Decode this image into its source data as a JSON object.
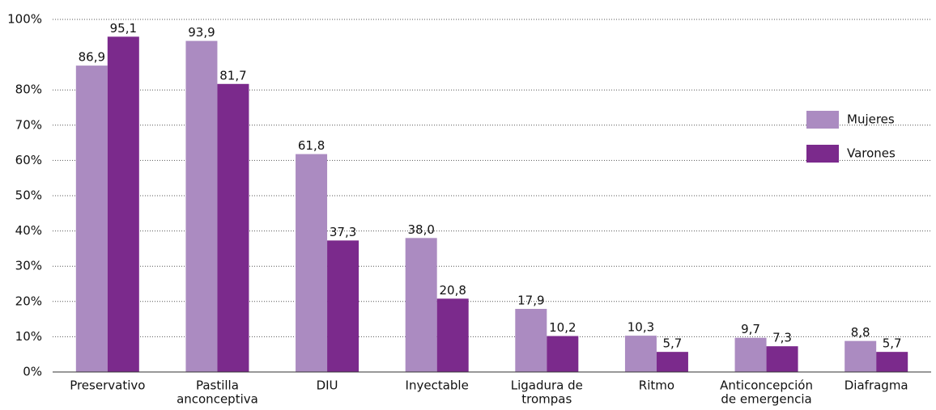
{
  "chart_data": {
    "type": "bar",
    "categories": [
      [
        "Preservativo"
      ],
      [
        "Pastilla",
        "anconceptiva"
      ],
      [
        "DIU"
      ],
      [
        "Inyectable"
      ],
      [
        "Ligadura de",
        "trompas"
      ],
      [
        "Ritmo"
      ],
      [
        "Anticoncepción",
        "de emergencia"
      ],
      [
        "Diafragma"
      ]
    ],
    "series": [
      {
        "name": "Mujeres",
        "color": "#ab8bc1",
        "values": [
          86.9,
          93.9,
          61.8,
          38.0,
          17.9,
          10.3,
          9.7,
          8.8
        ],
        "value_labels": [
          "86,9",
          "93,9",
          "61,8",
          "38,0",
          "17,9",
          "10,3",
          "9,7",
          "8,8"
        ]
      },
      {
        "name": "Varones",
        "color": "#7b2a8c",
        "values": [
          95.1,
          81.7,
          37.3,
          20.8,
          10.2,
          5.7,
          7.3,
          5.7
        ],
        "value_labels": [
          "95,1",
          "81,7",
          "37,3",
          "20,8",
          "10,2",
          "5,7",
          "7,3",
          "5,7"
        ]
      }
    ],
    "ylim": [
      0,
      100
    ],
    "yticks": [
      {
        "value": 0,
        "label": "0%"
      },
      {
        "value": 10,
        "label": "10%"
      },
      {
        "value": 20,
        "label": "20%"
      },
      {
        "value": 30,
        "label": "30%"
      },
      {
        "value": 40,
        "label": "40%"
      },
      {
        "value": 50,
        "label": "50%"
      },
      {
        "value": 60,
        "label": "60%"
      },
      {
        "value": 70,
        "label": "70%"
      },
      {
        "value": 80,
        "label": "80%"
      },
      {
        "value": 100,
        "label": "100%"
      }
    ],
    "grid": true,
    "legend": "top-right"
  }
}
